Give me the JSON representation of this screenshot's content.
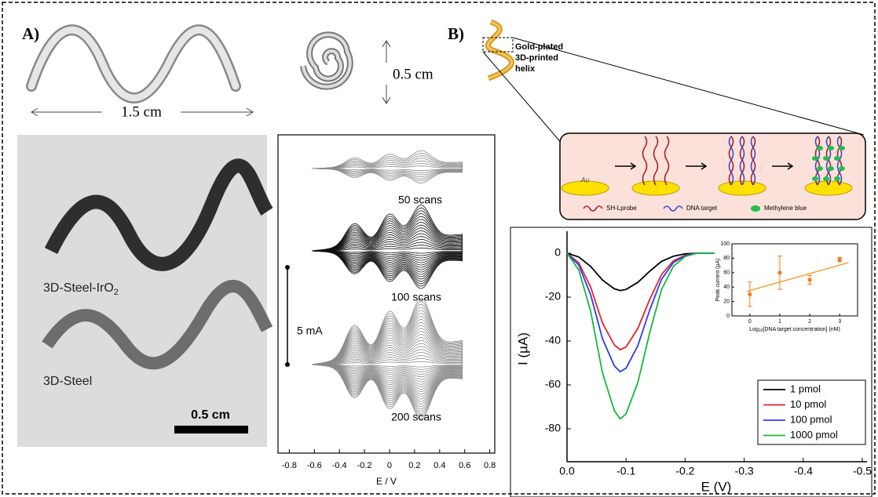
{
  "panel_a": {
    "label": "A)",
    "length_label": "1.5 cm",
    "height_label": "0.5 cm",
    "photo_labels": {
      "coated": [
        "3D-Steel-IrO",
        "2"
      ],
      "bare": "3D-Steel",
      "scale_bar": "0.5 cm"
    }
  },
  "panel_b": {
    "label": "B)",
    "helix_caption": [
      "Gold-plated",
      "3D-printed",
      "helix"
    ],
    "scheme": {
      "electrode": "Au",
      "legend": [
        "SH-Lprobe",
        "DNA target",
        "Methylene blue"
      ]
    }
  },
  "chart_data": [
    {
      "type": "cv",
      "xlabel": "E / V",
      "xlim": [
        -0.89,
        0.84
      ],
      "xticks": [
        -0.8,
        -0.6,
        -0.4,
        -0.2,
        0,
        0.2,
        0.4,
        0.6,
        0.8
      ],
      "scale_label": "5 mA",
      "annotations": [
        "50 scans",
        "100 scans",
        "200 scans"
      ]
    },
    {
      "type": "line",
      "xlabel": "E (V)",
      "ylabel": "I (µA)",
      "xlim": [
        0,
        -0.5
      ],
      "ylim": [
        -95,
        10
      ],
      "xticks": [
        {
          "value": 0,
          "label": "0.0"
        },
        -0.1,
        -0.2,
        -0.3,
        -0.4,
        -0.5
      ],
      "yticks": [
        0,
        -20,
        -40,
        -60,
        -80
      ],
      "legend": "lower right",
      "x": [
        0,
        -0.02,
        -0.04,
        -0.06,
        -0.08,
        -0.09,
        -0.1,
        -0.12,
        -0.14,
        -0.16,
        -0.18,
        -0.2,
        -0.22,
        -0.25
      ],
      "series": [
        {
          "name": "1 pmol",
          "color": "#000000",
          "values": [
            0,
            -1.7,
            -6,
            -12.2,
            -16.2,
            -17,
            -16.5,
            -13.3,
            -8.2,
            -3.7,
            -1.4,
            -0.3,
            0,
            0
          ]
        },
        {
          "name": "10 pmol",
          "color": "#e8212b",
          "values": [
            0,
            -4.4,
            -15.4,
            -31.7,
            -41.8,
            -44,
            -42.7,
            -34.3,
            -21.1,
            -9.7,
            -3.5,
            -0.9,
            0,
            0
          ]
        },
        {
          "name": "100 pmol",
          "color": "#2b3bf0",
          "values": [
            0,
            -5.4,
            -18.9,
            -38.9,
            -51.3,
            -54,
            -52.4,
            -42.1,
            -25.9,
            -11.9,
            -4.3,
            -1.1,
            0,
            0
          ]
        },
        {
          "name": "1000 pmol",
          "color": "#16b83a",
          "values": [
            0,
            -7.6,
            -26.4,
            -54.4,
            -71.7,
            -75.5,
            -73.2,
            -58.9,
            -36.2,
            -16.6,
            -6,
            -1.5,
            0,
            0
          ]
        }
      ]
    },
    {
      "type": "scatter",
      "xlabel": [
        "Log",
        "10",
        "[DNA target concentration] (nM)"
      ],
      "ylabel": "Peak current (µA)",
      "xlim": [
        -0.6,
        3.6
      ],
      "ylim": [
        0,
        100
      ],
      "xticks": [
        0,
        1,
        2,
        3
      ],
      "yticks": [
        0,
        20,
        40,
        60,
        80,
        100
      ],
      "x": [
        0,
        1,
        2,
        3
      ],
      "values": [
        30,
        60,
        50,
        78
      ],
      "errors": [
        17,
        23,
        6,
        3
      ],
      "color": "#f47c20",
      "fit": {
        "x": [
          -0.1,
          3.3
        ],
        "values": [
          34,
          74
        ],
        "color": "#f0a030"
      }
    }
  ]
}
